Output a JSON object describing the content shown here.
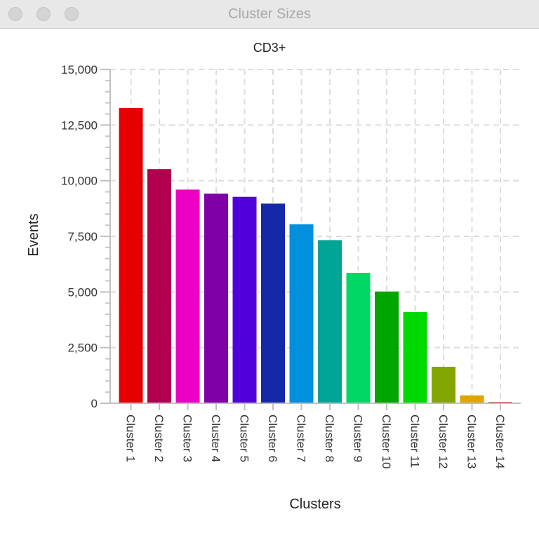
{
  "window": {
    "title": "Cluster Sizes"
  },
  "chart_data": {
    "type": "bar",
    "title": "CD3+",
    "xlabel": "Clusters",
    "ylabel": "Events",
    "ylim": [
      0,
      15000
    ],
    "yticks": [
      "0",
      "2,500",
      "5,000",
      "7,500",
      "10,000",
      "12,500",
      "15,000"
    ],
    "grid": true,
    "categories": [
      "Cluster 1",
      "Cluster 2",
      "Cluster 3",
      "Cluster 4",
      "Cluster 5",
      "Cluster 6",
      "Cluster 7",
      "Cluster 8",
      "Cluster 9",
      "Cluster 10",
      "Cluster 11",
      "Cluster 12",
      "Cluster 13",
      "Cluster 14"
    ],
    "values": [
      13270,
      10520,
      9600,
      9420,
      9275,
      8970,
      8045,
      7330,
      5860,
      5020,
      4100,
      1640,
      355,
      60
    ],
    "colors": [
      "#e60000",
      "#b0004e",
      "#eb00c4",
      "#8000a8",
      "#4f00dd",
      "#1428a8",
      "#0090dd",
      "#00a596",
      "#00d765",
      "#00a500",
      "#00d900",
      "#84a600",
      "#e0a600",
      "#d05030"
    ]
  }
}
